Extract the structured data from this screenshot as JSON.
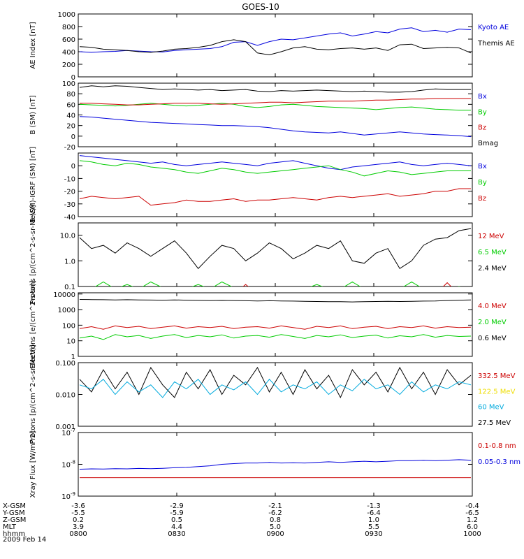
{
  "title": "GOES-10",
  "date_label": "2009 Feb 14",
  "colors": {
    "black": "#000000",
    "blue": "#0000dd",
    "red": "#cc0000",
    "green": "#00cc00",
    "cyan": "#00aadd",
    "yellow": "#eedd00"
  },
  "ephemeris": {
    "row_labels": [
      "X-GSM",
      "Y-GSM",
      "Z-GSM",
      "MLT",
      "hhmm"
    ],
    "columns": [
      [
        "-3.6",
        "-5.5",
        "0.2",
        "3.9",
        "0800"
      ],
      [
        "-2.9",
        "-5.9",
        "0.5",
        "4.4",
        "0830"
      ],
      [
        "-2.1",
        "-6.2",
        "0.8",
        "5.0",
        "0900"
      ],
      [
        "-1.3",
        "-6.4",
        "1.0",
        "5.5",
        "0930"
      ],
      [
        "-0.4",
        "-6.5",
        "1.2",
        "6.0",
        "1000"
      ]
    ]
  },
  "chart_data": [
    {
      "type": "line",
      "ylabel": "AE Index [nT]",
      "ylim": [
        0,
        1000
      ],
      "yticks": [
        "0",
        "200",
        "400",
        "600",
        "800",
        "1000"
      ],
      "legend": [
        {
          "label": "Kyoto AE",
          "color": "blue"
        },
        {
          "label": "Themis AE",
          "color": "black"
        }
      ],
      "series": [
        {
          "name": "Kyoto AE",
          "color": "blue",
          "values": [
            400,
            390,
            400,
            405,
            420,
            410,
            400,
            395,
            420,
            430,
            440,
            450,
            480,
            550,
            560,
            500,
            560,
            600,
            590,
            620,
            650,
            680,
            700,
            650,
            680,
            720,
            700,
            760,
            780,
            720,
            740,
            710,
            760,
            750
          ]
        },
        {
          "name": "Themis AE",
          "color": "black",
          "values": [
            480,
            470,
            440,
            430,
            420,
            400,
            390,
            410,
            440,
            450,
            470,
            500,
            560,
            590,
            560,
            380,
            350,
            400,
            460,
            480,
            440,
            430,
            450,
            460,
            440,
            460,
            420,
            510,
            520,
            450,
            460,
            470,
            460,
            380
          ]
        }
      ]
    },
    {
      "type": "line",
      "ylabel": "B (SM) [nT]",
      "ylim": [
        -20,
        100
      ],
      "yticks": [
        "-20",
        "0",
        "20",
        "40",
        "60",
        "80",
        "100"
      ],
      "legend": [
        {
          "label": "Bx",
          "color": "blue"
        },
        {
          "label": "By",
          "color": "green"
        },
        {
          "label": "Bz",
          "color": "red"
        },
        {
          "label": "Bmag",
          "color": "black"
        }
      ],
      "series": [
        {
          "name": "Bx",
          "color": "blue",
          "values": [
            37,
            36,
            34,
            32,
            30,
            28,
            26,
            25,
            24,
            23,
            22,
            21,
            20,
            20,
            19,
            18,
            16,
            13,
            10,
            8,
            7,
            6,
            8,
            5,
            2,
            4,
            6,
            8,
            6,
            4,
            3,
            2,
            1,
            -1
          ]
        },
        {
          "name": "By",
          "color": "green",
          "values": [
            60,
            59,
            58,
            57,
            58,
            60,
            62,
            60,
            58,
            57,
            58,
            60,
            62,
            60,
            56,
            54,
            56,
            59,
            60,
            58,
            56,
            55,
            54,
            53,
            52,
            50,
            52,
            54,
            55,
            53,
            51,
            50,
            49,
            49
          ]
        },
        {
          "name": "Bz",
          "color": "red",
          "values": [
            62,
            62,
            61,
            60,
            59,
            59,
            60,
            61,
            62,
            62,
            62,
            61,
            60,
            61,
            62,
            63,
            64,
            64,
            63,
            64,
            65,
            66,
            66,
            66,
            67,
            68,
            68,
            69,
            70,
            70,
            71,
            71,
            71,
            71
          ]
        },
        {
          "name": "Bmag",
          "color": "black",
          "values": [
            92,
            95,
            93,
            95,
            94,
            92,
            90,
            88,
            89,
            88,
            87,
            88,
            86,
            87,
            88,
            85,
            84,
            86,
            85,
            86,
            87,
            86,
            85,
            84,
            85,
            84,
            83,
            83,
            84,
            87,
            89,
            88,
            88,
            88
          ]
        }
      ]
    },
    {
      "type": "line",
      "ylabel": "B (SM)-IGRF (SM) [nT]",
      "ylim": [
        -40,
        10
      ],
      "yticks": [
        "-40",
        "-30",
        "-20",
        "-10",
        "0"
      ],
      "legend": [
        {
          "label": "Bx",
          "color": "blue"
        },
        {
          "label": "By",
          "color": "green"
        },
        {
          "label": "Bz",
          "color": "red"
        }
      ],
      "series": [
        {
          "name": "Bx",
          "color": "blue",
          "values": [
            8,
            7,
            6,
            5,
            4,
            3,
            2,
            3,
            1,
            0,
            1,
            2,
            3,
            2,
            1,
            0,
            2,
            3,
            4,
            2,
            0,
            -2,
            -3,
            -1,
            0,
            1,
            2,
            3,
            1,
            0,
            1,
            2,
            1,
            0
          ]
        },
        {
          "name": "By",
          "color": "green",
          "values": [
            4,
            3,
            1,
            0,
            2,
            1,
            -1,
            -2,
            -3,
            -5,
            -6,
            -4,
            -2,
            -3,
            -5,
            -6,
            -5,
            -4,
            -3,
            -2,
            -1,
            0,
            -3,
            -5,
            -8,
            -6,
            -4,
            -5,
            -7,
            -6,
            -5,
            -4,
            -4,
            -4
          ]
        },
        {
          "name": "Bz",
          "color": "red",
          "values": [
            -26,
            -24,
            -25,
            -26,
            -25,
            -24,
            -31,
            -30,
            -29,
            -27,
            -28,
            -28,
            -27,
            -26,
            -28,
            -27,
            -27,
            -26,
            -25,
            -26,
            -27,
            -25,
            -24,
            -25,
            -24,
            -23,
            -22,
            -24,
            -23,
            -22,
            -20,
            -20,
            -18,
            -18
          ]
        }
      ]
    },
    {
      "type": "line",
      "ylabel": "Protons [p/(cm^2-s-sr-MeV)]",
      "yscale": "log",
      "ylim": [
        0.1,
        30
      ],
      "yticks": [
        "0.1",
        "1.0",
        "10.0"
      ],
      "legend": [
        {
          "label": "12 MeV",
          "color": "red"
        },
        {
          "label": "6.5 MeV",
          "color": "green"
        },
        {
          "label": "2.4 MeV",
          "color": "black"
        }
      ],
      "series": [
        {
          "name": "2.4 MeV",
          "color": "black",
          "values": [
            8,
            3,
            4,
            2,
            5,
            3,
            1.5,
            3,
            6,
            2,
            0.5,
            1.5,
            4,
            3,
            1,
            2,
            5,
            3,
            1.2,
            2,
            4,
            3,
            6,
            1,
            0.8,
            2,
            3,
            0.5,
            1,
            4,
            7,
            8,
            15,
            18
          ]
        },
        {
          "name": "6.5 MeV",
          "color": "green",
          "values": [
            0.08,
            0.08,
            0.15,
            0.08,
            0.12,
            0.08,
            0.15,
            0.09,
            0.08,
            0.08,
            0.12,
            0.08,
            0.15,
            0.09,
            0.08,
            0.08,
            0.09,
            0.08,
            0.08,
            0.08,
            0.12,
            0.08,
            0.08,
            0.15,
            0.08,
            0.08,
            0.08,
            0.08,
            0.15,
            0.08,
            0.09,
            0.08,
            0.1,
            0.08
          ]
        },
        {
          "name": "12 MeV",
          "color": "red",
          "values": [
            0.05,
            0.05,
            0.05,
            0.05,
            0.05,
            0.05,
            0.05,
            0.05,
            0.05,
            0.05,
            0.05,
            0.05,
            0.05,
            0.05,
            0.12,
            0.05,
            0.05,
            0.05,
            0.05,
            0.05,
            0.05,
            0.05,
            0.05,
            0.05,
            0.05,
            0.05,
            0.05,
            0.05,
            0.05,
            0.05,
            0.05,
            0.14,
            0.05,
            0.05
          ]
        }
      ]
    },
    {
      "type": "line",
      "ylabel": "Electrons [e/(cm^2-s-sr)]",
      "yscale": "log",
      "ylim": [
        1,
        12000
      ],
      "yticks": [
        "1",
        "10",
        "100",
        "1000",
        "10000"
      ],
      "legend": [
        {
          "label": "4.0 MeV",
          "color": "red"
        },
        {
          "label": "2.0 MeV",
          "color": "green"
        },
        {
          "label": "0.6 MeV",
          "color": "black"
        }
      ],
      "series": [
        {
          "name": "0.6 MeV",
          "color": "black",
          "values": [
            4500,
            4400,
            4300,
            4200,
            4300,
            4200,
            4100,
            4000,
            4200,
            4000,
            3900,
            3800,
            3900,
            3800,
            3700,
            3600,
            3700,
            3600,
            3500,
            3400,
            3300,
            3200,
            3200,
            3100,
            3200,
            3300,
            3400,
            3300,
            3400,
            3500,
            3600,
            3800,
            4000,
            4200
          ]
        },
        {
          "name": "2.0 MeV",
          "color": "green",
          "values": [
            15,
            20,
            12,
            25,
            18,
            22,
            14,
            20,
            25,
            16,
            22,
            18,
            24,
            15,
            20,
            22,
            17,
            25,
            19,
            14,
            22,
            18,
            24,
            16,
            20,
            23,
            15,
            21,
            18,
            25,
            17,
            22,
            19,
            20
          ]
        },
        {
          "name": "4.0 MeV",
          "color": "red",
          "values": [
            60,
            80,
            55,
            90,
            70,
            85,
            60,
            75,
            90,
            65,
            80,
            70,
            85,
            60,
            75,
            80,
            65,
            90,
            70,
            55,
            85,
            70,
            90,
            60,
            75,
            85,
            60,
            80,
            70,
            90,
            65,
            80,
            70,
            75
          ]
        }
      ]
    },
    {
      "type": "line",
      "ylabel": "Protons [p/(cm^2-s-sr-MeV)]",
      "yscale": "log",
      "ylim": [
        0.001,
        0.1
      ],
      "yticks": [
        "0.001",
        "0.010",
        "0.100"
      ],
      "legend": [
        {
          "label": "332.5 MeV",
          "color": "red"
        },
        {
          "label": "122.5 MeV",
          "color": "yellow"
        },
        {
          "label": "60 MeV",
          "color": "cyan"
        },
        {
          "label": "27.5 MeV",
          "color": "black"
        }
      ],
      "series": [
        {
          "name": "27.5 MeV",
          "color": "black",
          "values": [
            0.03,
            0.012,
            0.06,
            0.015,
            0.05,
            0.01,
            0.07,
            0.02,
            0.008,
            0.05,
            0.015,
            0.06,
            0.01,
            0.04,
            0.02,
            0.07,
            0.012,
            0.05,
            0.01,
            0.06,
            0.015,
            0.04,
            0.008,
            0.06,
            0.02,
            0.05,
            0.012,
            0.07,
            0.015,
            0.05,
            0.01,
            0.06,
            0.02,
            0.04
          ]
        },
        {
          "name": "60 MeV",
          "color": "cyan",
          "values": [
            0.02,
            0.015,
            0.03,
            0.01,
            0.025,
            0.012,
            0.02,
            0.008,
            0.025,
            0.015,
            0.03,
            0.01,
            0.02,
            0.014,
            0.025,
            0.01,
            0.03,
            0.012,
            0.02,
            0.015,
            0.025,
            0.01,
            0.02,
            0.013,
            0.03,
            0.015,
            0.02,
            0.01,
            0.025,
            0.012,
            0.02,
            0.015,
            0.025,
            0.02
          ]
        }
      ]
    },
    {
      "type": "line",
      "ylabel": "Xray Flux [W/m^2]",
      "yscale": "log",
      "ylim": [
        1e-09,
        1e-07
      ],
      "yticks": [
        "10^-9",
        "10^-8",
        "10^-7"
      ],
      "legend": [
        {
          "label": "0.1-0.8 nm",
          "color": "red"
        },
        {
          "label": "0.05-0.3 nm",
          "color": "blue"
        }
      ],
      "series": [
        {
          "name": "0.05-0.3 nm",
          "color": "blue",
          "values": [
            7e-09,
            7.2e-09,
            7.1e-09,
            7.3e-09,
            7.2e-09,
            7.4e-09,
            7.3e-09,
            7.5e-09,
            7.8e-09,
            8e-09,
            8.5e-09,
            9e-09,
            1e-08,
            1.05e-08,
            1.1e-08,
            1.1e-08,
            1.15e-08,
            1.1e-08,
            1.12e-08,
            1.1e-08,
            1.15e-08,
            1.2e-08,
            1.15e-08,
            1.2e-08,
            1.25e-08,
            1.2e-08,
            1.25e-08,
            1.3e-08,
            1.3e-08,
            1.35e-08,
            1.3e-08,
            1.35e-08,
            1.4e-08,
            1.35e-08
          ]
        },
        {
          "name": "0.1-0.8 nm",
          "color": "red",
          "values": [
            3.8e-09,
            3.8e-09,
            3.8e-09,
            3.8e-09,
            3.8e-09,
            3.8e-09,
            3.8e-09,
            3.8e-09,
            3.8e-09,
            3.8e-09,
            3.8e-09,
            3.8e-09,
            3.8e-09,
            3.8e-09,
            3.8e-09,
            3.8e-09,
            3.8e-09,
            3.8e-09,
            3.8e-09,
            3.8e-09,
            3.8e-09,
            3.8e-09,
            3.8e-09,
            3.8e-09,
            3.8e-09,
            3.8e-09,
            3.8e-09,
            3.8e-09,
            3.8e-09,
            3.8e-09,
            3.8e-09,
            3.8e-09,
            3.8e-09,
            3.8e-09
          ]
        }
      ]
    }
  ]
}
